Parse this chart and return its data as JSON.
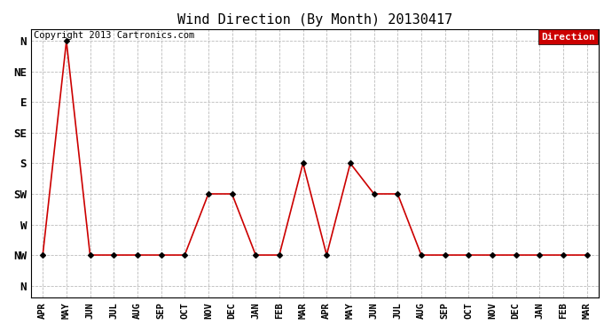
{
  "title": "Wind Direction (By Month) 20130417",
  "copyright": "Copyright 2013 Cartronics.com",
  "legend_label": "Direction",
  "x_labels": [
    "APR",
    "MAY",
    "JUN",
    "JUL",
    "AUG",
    "SEP",
    "OCT",
    "NOV",
    "DEC",
    "JAN",
    "FEB",
    "MAR",
    "APR",
    "MAY",
    "JUN",
    "JUL",
    "AUG",
    "SEP",
    "OCT",
    "NOV",
    "DEC",
    "JAN",
    "FEB",
    "MAR"
  ],
  "y_labels_top_to_bottom": [
    "N",
    "NW",
    "W",
    "SW",
    "S",
    "SE",
    "E",
    "NE",
    "N"
  ],
  "y_ticks": [
    8,
    7,
    6,
    5,
    4,
    3,
    2,
    1,
    0
  ],
  "data_values": [
    7,
    0,
    7,
    7,
    7,
    7,
    7,
    5,
    5,
    7,
    7,
    4,
    7,
    4,
    5,
    5,
    7,
    7,
    7,
    7,
    7,
    7,
    7,
    7
  ],
  "line_color": "#cc0000",
  "marker": "D",
  "marker_size": 3,
  "marker_edge_color": "#000000",
  "background_color": "#ffffff",
  "grid_color": "#bbbbbb",
  "title_fontsize": 11,
  "copyright_fontsize": 7.5,
  "legend_bg": "#cc0000",
  "legend_text_color": "#ffffff",
  "legend_fontsize": 8
}
